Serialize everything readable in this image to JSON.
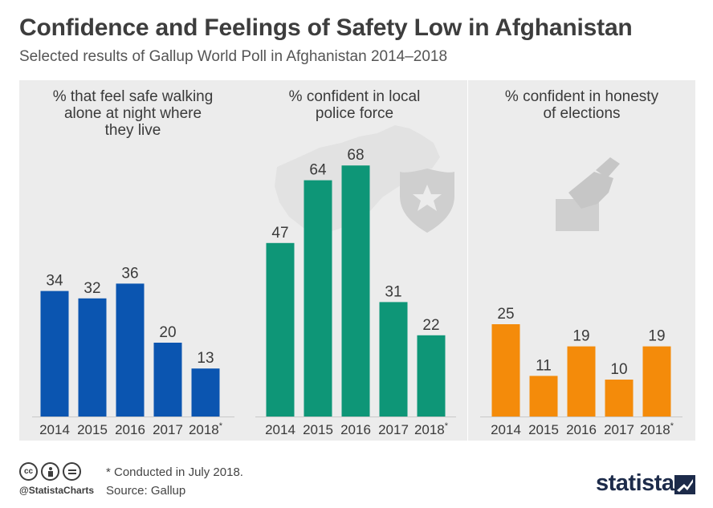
{
  "header": {
    "title": "Confidence and Feelings of Safety Low in Afghanistan",
    "subtitle": "Selected results of Gallup World Poll in Afghanistan 2014–2018"
  },
  "footer": {
    "note": "* Conducted in July 2018.",
    "source": "Source: Gallup",
    "handle": "@StatistaCharts",
    "logo": "statista"
  },
  "chart_data": [
    {
      "type": "bar",
      "title_lines": [
        "% that feel safe walking",
        "alone at night where",
        "they live"
      ],
      "categories": [
        "2014",
        "2015",
        "2016",
        "2017",
        "2018*"
      ],
      "values": [
        34,
        32,
        36,
        20,
        13
      ],
      "color": "#0b55b0",
      "icon": "moon-icon"
    },
    {
      "type": "bar",
      "title_lines": [
        "% confident in local",
        "police force"
      ],
      "categories": [
        "2014",
        "2015",
        "2016",
        "2017",
        "2018*"
      ],
      "values": [
        47,
        64,
        68,
        31,
        22
      ],
      "color": "#0e9677",
      "icon": "police-badge-icon"
    },
    {
      "type": "bar",
      "title_lines": [
        "% confident in honesty",
        "of elections"
      ],
      "categories": [
        "2014",
        "2015",
        "2016",
        "2017",
        "2018*"
      ],
      "values": [
        25,
        11,
        19,
        10,
        19
      ],
      "color": "#f48b0a",
      "icon": "ballot-box-icon"
    }
  ]
}
